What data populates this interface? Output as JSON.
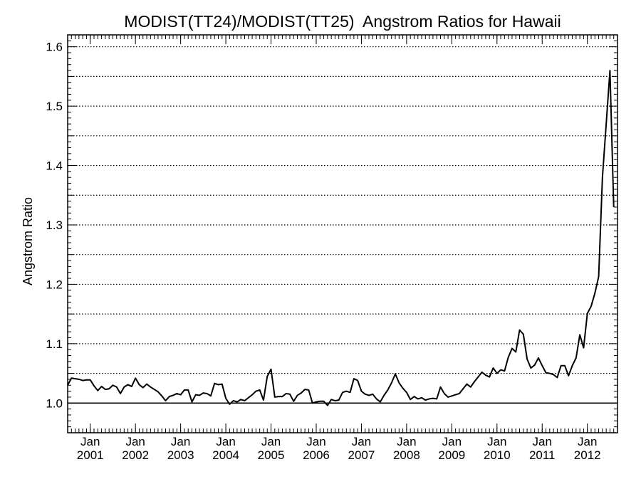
{
  "chart_data": {
    "type": "line",
    "title": "MODIST(TT24)/MODIST(TT25)  Angstrom Ratios for Hawaii",
    "xlabel": "",
    "ylabel": "Angstrom Ratio",
    "xlim": [
      "2000-07",
      "2012-09"
    ],
    "ylim": [
      0.95,
      1.62
    ],
    "yticks": [
      1.0,
      1.1,
      1.2,
      1.3,
      1.4,
      1.5,
      1.6
    ],
    "ytick_labels": [
      "1.0",
      "1.1",
      "1.2",
      "1.3",
      "1.4",
      "1.5",
      "1.6"
    ],
    "ygrid_dotted": [
      0.95,
      1.05,
      1.1,
      1.15,
      1.2,
      1.25,
      1.3,
      1.35,
      1.4,
      1.45,
      1.5,
      1.55,
      1.6
    ],
    "reference_line": 1.0,
    "xticks": [
      {
        "month_label": "Jan",
        "year_label": "2001",
        "date": "2001-01"
      },
      {
        "month_label": "Jan",
        "year_label": "2002",
        "date": "2002-01"
      },
      {
        "month_label": "Jan",
        "year_label": "2003",
        "date": "2003-01"
      },
      {
        "month_label": "Jan",
        "year_label": "2004",
        "date": "2004-01"
      },
      {
        "month_label": "Jan",
        "year_label": "2005",
        "date": "2005-01"
      },
      {
        "month_label": "Jan",
        "year_label": "2006",
        "date": "2006-01"
      },
      {
        "month_label": "Jan",
        "year_label": "2007",
        "date": "2007-01"
      },
      {
        "month_label": "Jan",
        "year_label": "2008",
        "date": "2008-01"
      },
      {
        "month_label": "Jan",
        "year_label": "2009",
        "date": "2009-01"
      },
      {
        "month_label": "Jan",
        "year_label": "2010",
        "date": "2010-01"
      },
      {
        "month_label": "Jan",
        "year_label": "2011",
        "date": "2011-01"
      },
      {
        "month_label": "Jan",
        "year_label": "2012",
        "date": "2012-01"
      }
    ],
    "grid": "dotted horizontal",
    "series": [
      {
        "color": "#000000",
        "points": [
          [
            "2000-07",
            1.03
          ],
          [
            "2000-08",
            1.042
          ],
          [
            "2000-09",
            1.041
          ],
          [
            "2000-10",
            1.04
          ],
          [
            "2000-11",
            1.038
          ],
          [
            "2000-12",
            1.039
          ],
          [
            "2001-01",
            1.039
          ],
          [
            "2001-02",
            1.029
          ],
          [
            "2001-03",
            1.021
          ],
          [
            "2001-04",
            1.028
          ],
          [
            "2001-05",
            1.023
          ],
          [
            "2001-06",
            1.024
          ],
          [
            "2001-07",
            1.03
          ],
          [
            "2001-08",
            1.027
          ],
          [
            "2001-09",
            1.016
          ],
          [
            "2001-10",
            1.027
          ],
          [
            "2001-11",
            1.031
          ],
          [
            "2001-12",
            1.028
          ],
          [
            "2002-01",
            1.042
          ],
          [
            "2002-02",
            1.031
          ],
          [
            "2002-03",
            1.026
          ],
          [
            "2002-04",
            1.032
          ],
          [
            "2002-05",
            1.027
          ],
          [
            "2002-06",
            1.023
          ],
          [
            "2002-07",
            1.019
          ],
          [
            "2002-08",
            1.012
          ],
          [
            "2002-09",
            1.004
          ],
          [
            "2002-10",
            1.011
          ],
          [
            "2002-11",
            1.013
          ],
          [
            "2002-12",
            1.016
          ],
          [
            "2003-01",
            1.014
          ],
          [
            "2003-02",
            1.022
          ],
          [
            "2003-03",
            1.022
          ],
          [
            "2003-04",
            1.002
          ],
          [
            "2003-05",
            1.014
          ],
          [
            "2003-06",
            1.013
          ],
          [
            "2003-07",
            1.017
          ],
          [
            "2003-08",
            1.016
          ],
          [
            "2003-09",
            1.012
          ],
          [
            "2003-10",
            1.033
          ],
          [
            "2003-11",
            1.031
          ],
          [
            "2003-12",
            1.032
          ],
          [
            "2004-01",
            1.008
          ],
          [
            "2004-02",
            0.998
          ],
          [
            "2004-03",
            1.004
          ],
          [
            "2004-04",
            1.002
          ],
          [
            "2004-05",
            1.006
          ],
          [
            "2004-06",
            1.004
          ],
          [
            "2004-07",
            1.009
          ],
          [
            "2004-08",
            1.014
          ],
          [
            "2004-09",
            1.02
          ],
          [
            "2004-10",
            1.022
          ],
          [
            "2004-11",
            1.005
          ],
          [
            "2004-12",
            1.045
          ],
          [
            "2005-01",
            1.057
          ],
          [
            "2005-02",
            1.01
          ],
          [
            "2005-03",
            1.011
          ],
          [
            "2005-04",
            1.011
          ],
          [
            "2005-05",
            1.016
          ],
          [
            "2005-06",
            1.015
          ],
          [
            "2005-07",
            1.003
          ],
          [
            "2005-08",
            1.013
          ],
          [
            "2005-09",
            1.017
          ],
          [
            "2005-10",
            1.023
          ],
          [
            "2005-11",
            1.022
          ],
          [
            "2005-12",
            1.0
          ],
          [
            "2006-01",
            1.002
          ],
          [
            "2006-02",
            1.003
          ],
          [
            "2006-03",
            1.003
          ],
          [
            "2006-04",
            0.996
          ],
          [
            "2006-05",
            1.006
          ],
          [
            "2006-06",
            1.004
          ],
          [
            "2006-07",
            1.005
          ],
          [
            "2006-08",
            1.018
          ],
          [
            "2006-09",
            1.02
          ],
          [
            "2006-10",
            1.018
          ],
          [
            "2006-11",
            1.041
          ],
          [
            "2006-12",
            1.038
          ],
          [
            "2007-01",
            1.02
          ],
          [
            "2007-02",
            1.015
          ],
          [
            "2007-03",
            1.013
          ],
          [
            "2007-04",
            1.015
          ],
          [
            "2007-05",
            1.007
          ],
          [
            "2007-06",
            1.002
          ],
          [
            "2007-07",
            1.013
          ],
          [
            "2007-08",
            1.022
          ],
          [
            "2007-09",
            1.034
          ],
          [
            "2007-10",
            1.049
          ],
          [
            "2007-11",
            1.034
          ],
          [
            "2007-12",
            1.025
          ],
          [
            "2008-01",
            1.018
          ],
          [
            "2008-02",
            1.006
          ],
          [
            "2008-03",
            1.011
          ],
          [
            "2008-04",
            1.007
          ],
          [
            "2008-05",
            1.009
          ],
          [
            "2008-06",
            1.005
          ],
          [
            "2008-07",
            1.007
          ],
          [
            "2008-08",
            1.008
          ],
          [
            "2008-09",
            1.007
          ],
          [
            "2008-10",
            1.027
          ],
          [
            "2008-11",
            1.016
          ],
          [
            "2008-12",
            1.01
          ],
          [
            "2009-01",
            1.012
          ],
          [
            "2009-02",
            1.014
          ],
          [
            "2009-03",
            1.016
          ],
          [
            "2009-04",
            1.024
          ],
          [
            "2009-05",
            1.032
          ],
          [
            "2009-06",
            1.027
          ],
          [
            "2009-07",
            1.036
          ],
          [
            "2009-08",
            1.044
          ],
          [
            "2009-09",
            1.052
          ],
          [
            "2009-10",
            1.047
          ],
          [
            "2009-11",
            1.044
          ],
          [
            "2009-12",
            1.059
          ],
          [
            "2010-01",
            1.05
          ],
          [
            "2010-02",
            1.056
          ],
          [
            "2010-03",
            1.054
          ],
          [
            "2010-04",
            1.077
          ],
          [
            "2010-05",
            1.092
          ],
          [
            "2010-06",
            1.086
          ],
          [
            "2010-07",
            1.123
          ],
          [
            "2010-08",
            1.116
          ],
          [
            "2010-09",
            1.074
          ],
          [
            "2010-10",
            1.059
          ],
          [
            "2010-11",
            1.064
          ],
          [
            "2010-12",
            1.076
          ],
          [
            "2011-01",
            1.063
          ],
          [
            "2011-02",
            1.051
          ],
          [
            "2011-03",
            1.05
          ],
          [
            "2011-04",
            1.048
          ],
          [
            "2011-05",
            1.043
          ],
          [
            "2011-06",
            1.063
          ],
          [
            "2011-07",
            1.063
          ],
          [
            "2011-08",
            1.046
          ],
          [
            "2011-09",
            1.063
          ],
          [
            "2011-10",
            1.076
          ],
          [
            "2011-11",
            1.115
          ],
          [
            "2011-12",
            1.093
          ],
          [
            "2012-01",
            1.151
          ],
          [
            "2012-02",
            1.163
          ],
          [
            "2012-03",
            1.185
          ],
          [
            "2012-04",
            1.213
          ],
          [
            "2012-05",
            1.38
          ],
          [
            "2012-06",
            1.47
          ],
          [
            "2012-07",
            1.56
          ],
          [
            "2012-08",
            1.33
          ]
        ]
      }
    ]
  }
}
